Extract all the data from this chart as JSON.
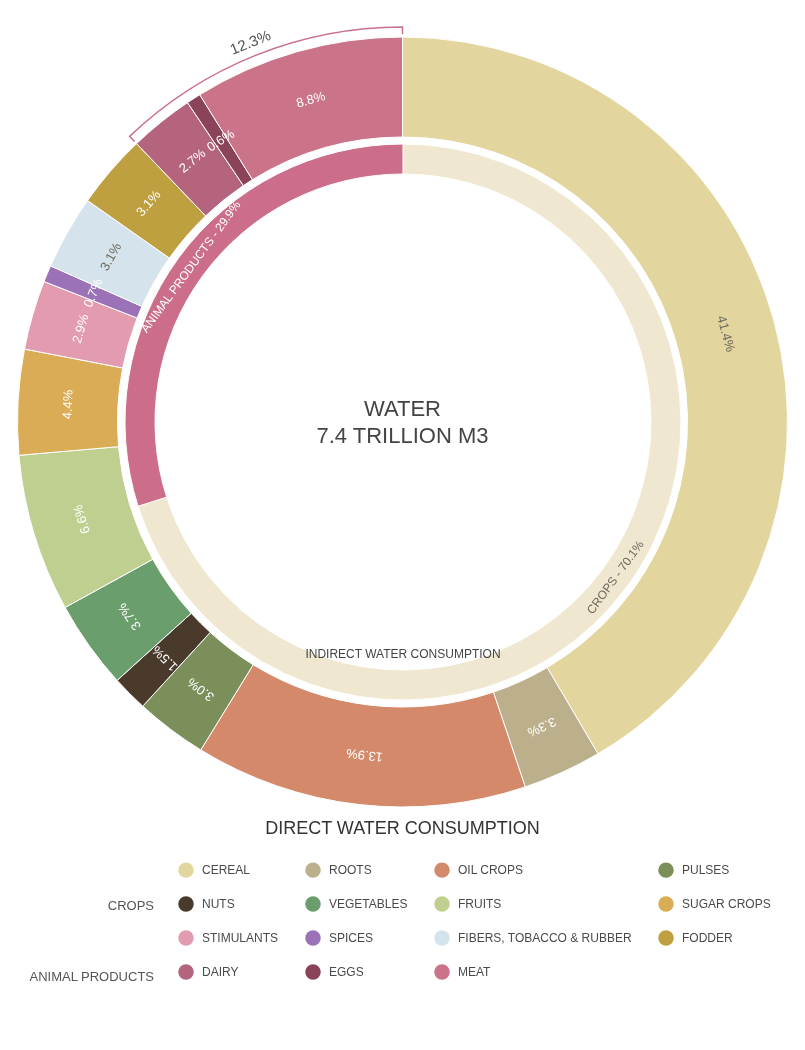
{
  "chart_data": [
    {
      "type": "donut",
      "title": "WATER",
      "subtitle": "7.4 TRILLION M3",
      "categories": [
        "CEREAL",
        "ROOTS",
        "OIL CROPS",
        "PULSES",
        "NUTS",
        "VEGETABLES",
        "FRUITS",
        "SUGAR CROPS",
        "STIMULANTS",
        "SPICES",
        "FIBERS, TOBACCO & RUBBER",
        "FODDER",
        "DAIRY",
        "EGGS",
        "MEAT"
      ],
      "values": [
        41.4,
        3.3,
        13.9,
        3.0,
        1.5,
        3.7,
        6.6,
        4.4,
        2.9,
        0.7,
        3.1,
        3.1,
        2.7,
        0.6,
        8.8
      ],
      "colors": [
        "#e2d59e",
        "#bcb08c",
        "#d4896a",
        "#7a8f5a",
        "#4a3a2c",
        "#6a9e6c",
        "#bfcf8f",
        "#d9ac55",
        "#e39bb0",
        "#9b72b8",
        "#d4e3ec",
        "#bfa040",
        "#b5647e",
        "#8a4358",
        "#cb7489"
      ],
      "value_labels": [
        "41.4%",
        "3.3%",
        "13.9%",
        "3.0%",
        "1.5%",
        "3.7%",
        "6.6%",
        "4.4%",
        "2.9%",
        "0.7%",
        "3.1%",
        "3.1%",
        "2.7%",
        "0.6%",
        "8.8%"
      ],
      "legend": "bottom",
      "annotations": [
        "12.3%",
        "DIRECT WATER CONSUMPTION",
        "CROPS",
        "ANIMAL PRODUCTS"
      ]
    },
    {
      "type": "donut",
      "categories": [
        "CROPS",
        "ANIMAL PRODUCTS"
      ],
      "values": [
        70.1,
        29.9
      ],
      "colors": [
        "#efe7cf",
        "#cc6e8a"
      ],
      "value_labels": [
        "70.1%",
        "29.9%"
      ],
      "annotations": [
        "INDIRECT WATER CONSUMPTION"
      ]
    }
  ]
}
